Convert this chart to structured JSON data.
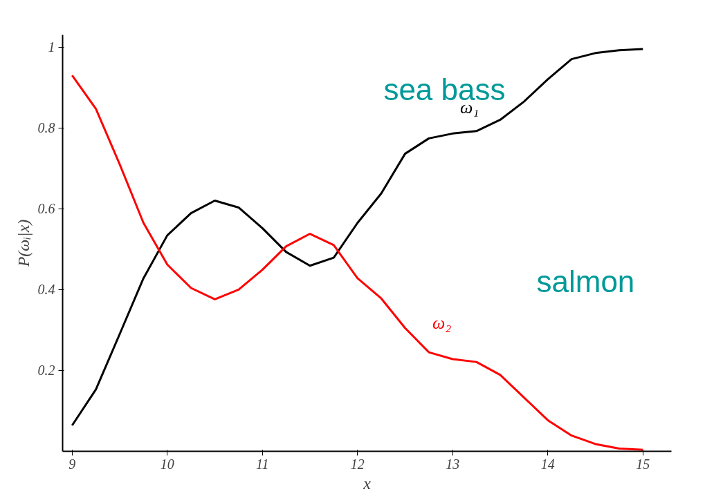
{
  "chart_data": {
    "type": "line",
    "xlabel": "x",
    "ylabel": "P(ωᵢ|x)",
    "x": [
      9,
      9.25,
      9.5,
      9.75,
      10,
      10.25,
      10.5,
      10.75,
      11,
      11.25,
      11.5,
      11.75,
      12,
      12.25,
      12.5,
      12.75,
      13,
      13.25,
      13.5,
      13.75,
      14,
      14.25,
      14.5,
      14.75,
      15
    ],
    "series": [
      {
        "name": "ω₁",
        "color": "#000000",
        "values": [
          0.064,
          0.153,
          0.29,
          0.428,
          0.534,
          0.589,
          0.62,
          0.603,
          0.552,
          0.493,
          0.459,
          0.479,
          0.565,
          0.638,
          0.736,
          0.774,
          0.786,
          0.792,
          0.82,
          0.865,
          0.92,
          0.97,
          0.985,
          0.992,
          0.995
        ]
      },
      {
        "name": "ω₂",
        "color": "#ff0000",
        "values": [
          0.93,
          0.847,
          0.71,
          0.565,
          0.462,
          0.404,
          0.376,
          0.4,
          0.449,
          0.507,
          0.538,
          0.51,
          0.428,
          0.378,
          0.305,
          0.245,
          0.228,
          0.221,
          0.189,
          0.133,
          0.077,
          0.039,
          0.018,
          0.007,
          0.004
        ]
      }
    ],
    "xlim": [
      8.9,
      15.3
    ],
    "ylim": [
      0,
      1.03
    ],
    "xticks": [
      9,
      10,
      11,
      12,
      13,
      14,
      15
    ],
    "yticks": [
      0.2,
      0.4,
      0.6,
      0.8,
      1
    ],
    "annotations": [
      "sea bass",
      "salmon"
    ],
    "grid": false,
    "line_style": "solid",
    "marker": "none"
  }
}
